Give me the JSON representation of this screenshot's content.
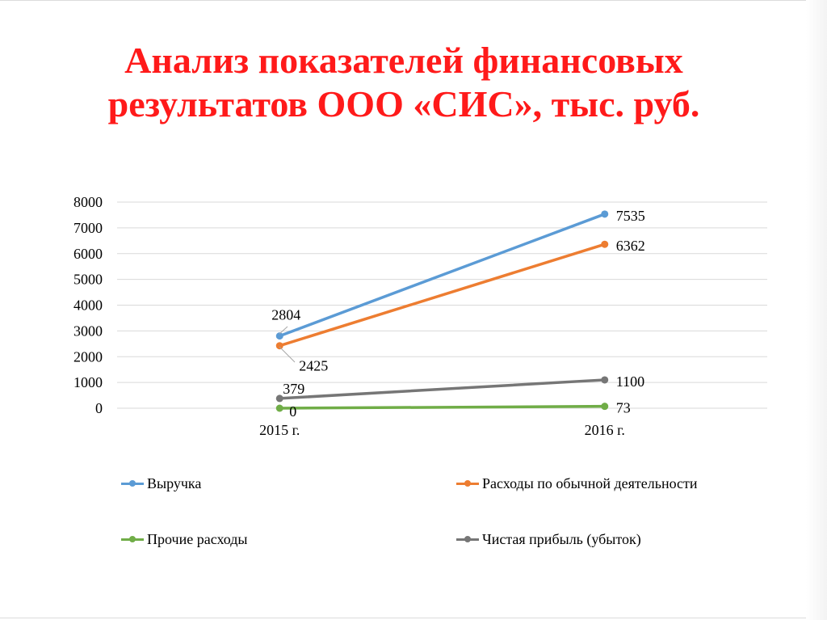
{
  "slide": {
    "title_line1": "Анализ показателей финансовых",
    "title_line2": "результатов ООО «СИС», тыс. руб."
  },
  "chart_data": {
    "type": "line",
    "categories": [
      "2015 г.",
      "2016 г."
    ],
    "ylim": [
      0,
      8000
    ],
    "yticks": [
      0,
      1000,
      2000,
      3000,
      4000,
      5000,
      6000,
      7000,
      8000
    ],
    "grid": true,
    "legend_position": "bottom",
    "series": [
      {
        "name": "Выручка",
        "values": [
          2804,
          7535
        ],
        "color": "#5b9bd5"
      },
      {
        "name": "Расходы по обычной деятельности",
        "values": [
          2425,
          6362
        ],
        "color": "#ed7d31"
      },
      {
        "name": "Прочие расходы",
        "values": [
          0,
          73
        ],
        "color": "#70ad47"
      },
      {
        "name": "Чистая прибыль (убыток)",
        "values": [
          379,
          1100
        ],
        "color": "#767676"
      }
    ]
  }
}
